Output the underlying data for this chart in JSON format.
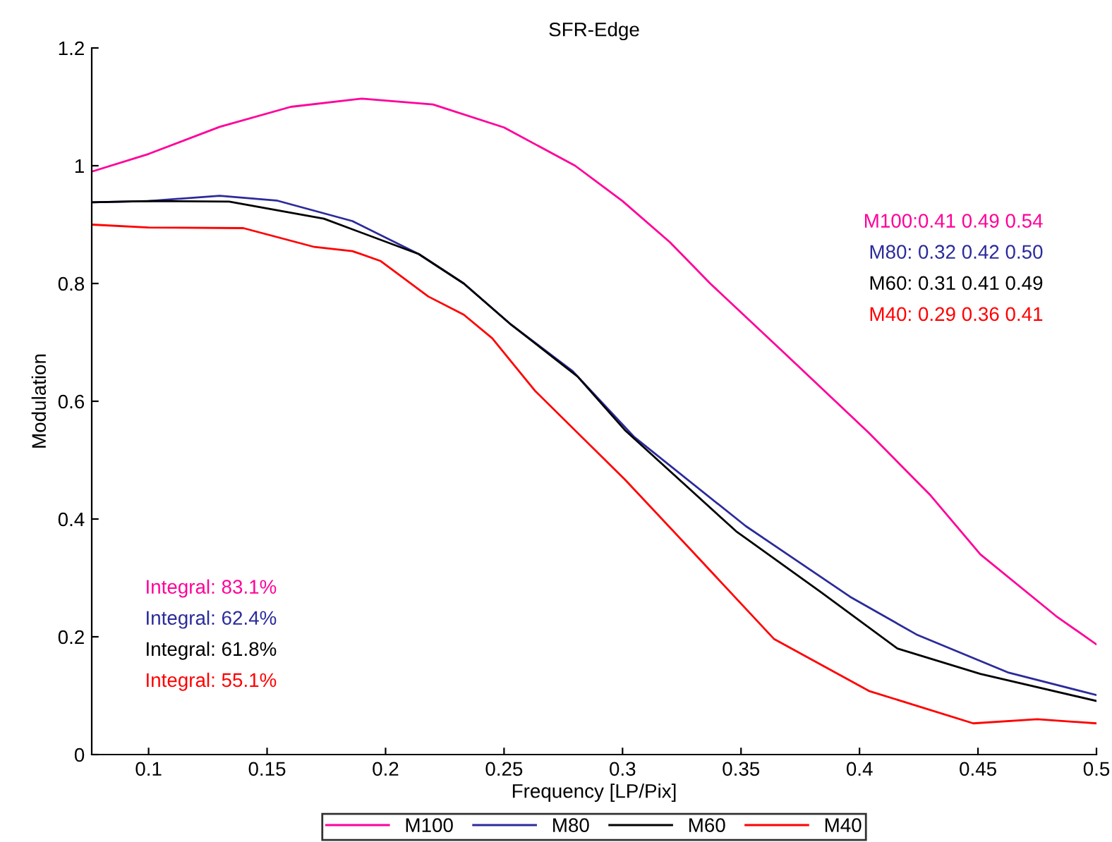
{
  "chart_data": {
    "type": "line",
    "title": "SFR-Edge",
    "xlabel": "Frequency [LP/Pix]",
    "ylabel": "Modulation",
    "xlim": [
      0.076,
      0.5
    ],
    "xticks": [
      0.1,
      0.15,
      0.2,
      0.25,
      0.3,
      0.35,
      0.4,
      0.45,
      0.5
    ],
    "ylim": [
      0,
      1.2
    ],
    "yticks": [
      0,
      0.2,
      0.4,
      0.6,
      0.8,
      1,
      1.2
    ],
    "grid": false,
    "legend": "bottom",
    "line_style": "solid",
    "marker": "none",
    "series": [
      {
        "name": "M100",
        "color": "#ff0099",
        "x": [
          0.076,
          0.1,
          0.13,
          0.16,
          0.19,
          0.22,
          0.25,
          0.28,
          0.3,
          0.32,
          0.337,
          0.368,
          0.404,
          0.43,
          0.451,
          0.483,
          0.5
        ],
        "values": [
          0.99,
          1.02,
          1.066,
          1.1,
          1.114,
          1.104,
          1.065,
          1.0,
          0.94,
          0.87,
          0.8,
          0.683,
          0.546,
          0.44,
          0.34,
          0.235,
          0.187
        ]
      },
      {
        "name": "M80",
        "color": "#2b2b9b",
        "x": [
          0.076,
          0.1,
          0.13,
          0.154,
          0.186,
          0.214,
          0.233,
          0.253,
          0.279,
          0.305,
          0.352,
          0.396,
          0.424,
          0.463,
          0.5
        ],
        "values": [
          0.938,
          0.94,
          0.949,
          0.941,
          0.906,
          0.85,
          0.8,
          0.73,
          0.651,
          0.539,
          0.388,
          0.268,
          0.204,
          0.139,
          0.101
        ]
      },
      {
        "name": "M60",
        "color": "#000000",
        "x": [
          0.076,
          0.1,
          0.134,
          0.174,
          0.214,
          0.233,
          0.253,
          0.281,
          0.301,
          0.348,
          0.384,
          0.416,
          0.451,
          0.5
        ],
        "values": [
          0.938,
          0.94,
          0.939,
          0.91,
          0.85,
          0.8,
          0.73,
          0.642,
          0.551,
          0.379,
          0.275,
          0.18,
          0.137,
          0.091
        ]
      },
      {
        "name": "M40",
        "color": "#ff0000",
        "x": [
          0.076,
          0.1,
          0.14,
          0.17,
          0.186,
          0.198,
          0.218,
          0.233,
          0.245,
          0.263,
          0.301,
          0.329,
          0.364,
          0.404,
          0.448,
          0.475,
          0.5
        ],
        "values": [
          0.9,
          0.895,
          0.894,
          0.862,
          0.855,
          0.838,
          0.778,
          0.747,
          0.707,
          0.618,
          0.467,
          0.347,
          0.196,
          0.108,
          0.053,
          0.06,
          0.053
        ]
      }
    ],
    "annotations": [
      "M100:0.41 0.49 0.54",
      "M80: 0.32 0.42 0.50",
      "M60: 0.31 0.41 0.49",
      "M40: 0.29 0.36 0.41",
      "Integral: 83.1%",
      "Integral: 62.4%",
      "Integral: 61.8%",
      "Integral: 55.1%"
    ]
  }
}
